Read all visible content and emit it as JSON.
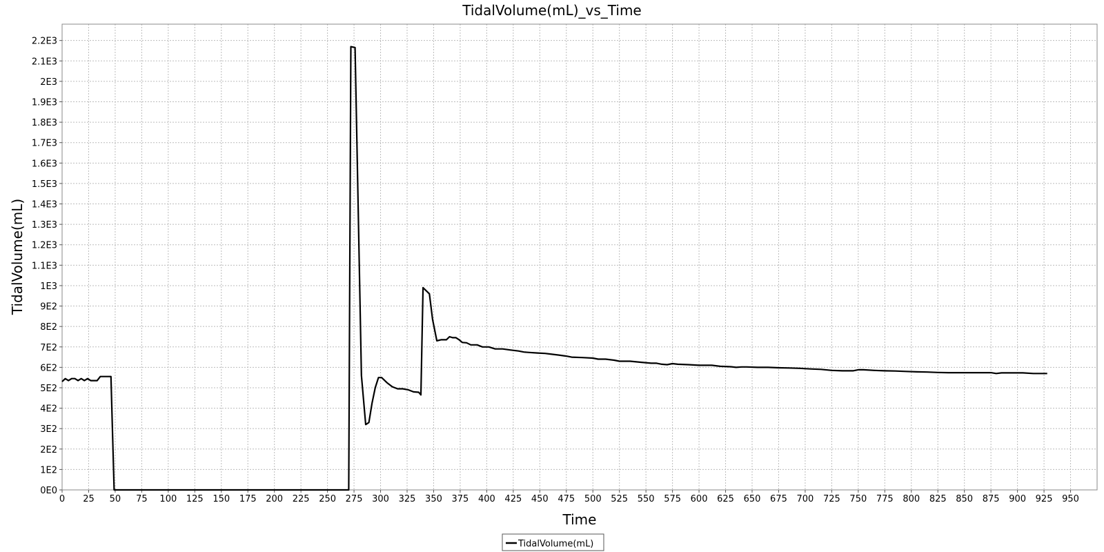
{
  "chart_data": {
    "type": "line",
    "title": "TidalVolume(mL)_vs_Time",
    "xlabel": "Time",
    "ylabel": "TidalVolume(mL)",
    "xlim": [
      0,
      975
    ],
    "ylim": [
      0,
      2280
    ],
    "x_ticks": [
      0,
      25,
      50,
      75,
      100,
      125,
      150,
      175,
      200,
      225,
      250,
      275,
      300,
      325,
      350,
      375,
      400,
      425,
      450,
      475,
      500,
      525,
      550,
      575,
      600,
      625,
      650,
      675,
      700,
      725,
      750,
      775,
      800,
      825,
      850,
      875,
      900,
      925,
      950
    ],
    "y_ticks": [
      {
        "value": 0,
        "label": "0E0"
      },
      {
        "value": 100,
        "label": "1E2"
      },
      {
        "value": 200,
        "label": "2E2"
      },
      {
        "value": 300,
        "label": "3E2"
      },
      {
        "value": 400,
        "label": "4E2"
      },
      {
        "value": 500,
        "label": "5E2"
      },
      {
        "value": 600,
        "label": "6E2"
      },
      {
        "value": 700,
        "label": "7E2"
      },
      {
        "value": 800,
        "label": "8E2"
      },
      {
        "value": 900,
        "label": "9E2"
      },
      {
        "value": 1000,
        "label": "1E3"
      },
      {
        "value": 1100,
        "label": "1.1E3"
      },
      {
        "value": 1200,
        "label": "1.2E3"
      },
      {
        "value": 1300,
        "label": "1.3E3"
      },
      {
        "value": 1400,
        "label": "1.4E3"
      },
      {
        "value": 1500,
        "label": "1.5E3"
      },
      {
        "value": 1600,
        "label": "1.6E3"
      },
      {
        "value": 1700,
        "label": "1.7E3"
      },
      {
        "value": 1800,
        "label": "1.8E3"
      },
      {
        "value": 1900,
        "label": "1.9E3"
      },
      {
        "value": 2000,
        "label": "2E3"
      },
      {
        "value": 2100,
        "label": "2.1E3"
      },
      {
        "value": 2200,
        "label": "2.2E3"
      }
    ],
    "grid": true,
    "legend": "bottom-center",
    "series": [
      {
        "name": "TidalVolume(mL)",
        "color": "#000000",
        "points": [
          [
            0,
            530
          ],
          [
            3,
            545
          ],
          [
            6,
            535
          ],
          [
            9,
            545
          ],
          [
            12,
            545
          ],
          [
            15,
            535
          ],
          [
            18,
            545
          ],
          [
            21,
            535
          ],
          [
            24,
            545
          ],
          [
            27,
            535
          ],
          [
            30,
            535
          ],
          [
            33,
            535
          ],
          [
            36,
            555
          ],
          [
            40,
            555
          ],
          [
            44,
            555
          ],
          [
            46,
            555
          ],
          [
            49,
            0
          ],
          [
            100,
            0
          ],
          [
            150,
            0
          ],
          [
            200,
            0
          ],
          [
            250,
            0
          ],
          [
            270,
            0
          ],
          [
            272,
            2170
          ],
          [
            276,
            2165
          ],
          [
            282,
            560
          ],
          [
            286,
            320
          ],
          [
            289,
            330
          ],
          [
            292,
            425
          ],
          [
            295,
            500
          ],
          [
            298,
            550
          ],
          [
            301,
            550
          ],
          [
            306,
            525
          ],
          [
            311,
            505
          ],
          [
            316,
            495
          ],
          [
            321,
            495
          ],
          [
            326,
            490
          ],
          [
            331,
            480
          ],
          [
            336,
            478
          ],
          [
            338,
            465
          ],
          [
            340,
            990
          ],
          [
            344,
            970
          ],
          [
            346,
            960
          ],
          [
            349,
            835
          ],
          [
            353,
            730
          ],
          [
            357,
            735
          ],
          [
            362,
            735
          ],
          [
            365,
            750
          ],
          [
            368,
            745
          ],
          [
            371,
            745
          ],
          [
            374,
            735
          ],
          [
            377,
            722
          ],
          [
            381,
            720
          ],
          [
            385,
            710
          ],
          [
            391,
            710
          ],
          [
            396,
            700
          ],
          [
            402,
            700
          ],
          [
            408,
            690
          ],
          [
            415,
            690
          ],
          [
            422,
            685
          ],
          [
            430,
            680
          ],
          [
            435,
            675
          ],
          [
            440,
            673
          ],
          [
            448,
            670
          ],
          [
            455,
            668
          ],
          [
            460,
            665
          ],
          [
            468,
            660
          ],
          [
            475,
            655
          ],
          [
            480,
            650
          ],
          [
            490,
            648
          ],
          [
            500,
            645
          ],
          [
            505,
            640
          ],
          [
            512,
            640
          ],
          [
            520,
            635
          ],
          [
            525,
            630
          ],
          [
            535,
            630
          ],
          [
            545,
            625
          ],
          [
            555,
            620
          ],
          [
            560,
            620
          ],
          [
            565,
            615
          ],
          [
            570,
            613
          ],
          [
            575,
            618
          ],
          [
            580,
            615
          ],
          [
            590,
            613
          ],
          [
            600,
            610
          ],
          [
            612,
            610
          ],
          [
            620,
            605
          ],
          [
            630,
            603
          ],
          [
            635,
            600
          ],
          [
            640,
            602
          ],
          [
            645,
            602
          ],
          [
            655,
            600
          ],
          [
            665,
            600
          ],
          [
            675,
            598
          ],
          [
            685,
            597
          ],
          [
            695,
            595
          ],
          [
            705,
            592
          ],
          [
            715,
            590
          ],
          [
            725,
            585
          ],
          [
            735,
            583
          ],
          [
            745,
            583
          ],
          [
            750,
            588
          ],
          [
            755,
            588
          ],
          [
            765,
            585
          ],
          [
            775,
            583
          ],
          [
            785,
            582
          ],
          [
            795,
            580
          ],
          [
            805,
            578
          ],
          [
            815,
            577
          ],
          [
            825,
            575
          ],
          [
            835,
            574
          ],
          [
            845,
            574
          ],
          [
            855,
            574
          ],
          [
            865,
            574
          ],
          [
            875,
            574
          ],
          [
            880,
            570
          ],
          [
            885,
            573
          ],
          [
            895,
            573
          ],
          [
            905,
            573
          ],
          [
            915,
            570
          ],
          [
            925,
            570
          ],
          [
            928,
            570
          ]
        ]
      }
    ]
  }
}
